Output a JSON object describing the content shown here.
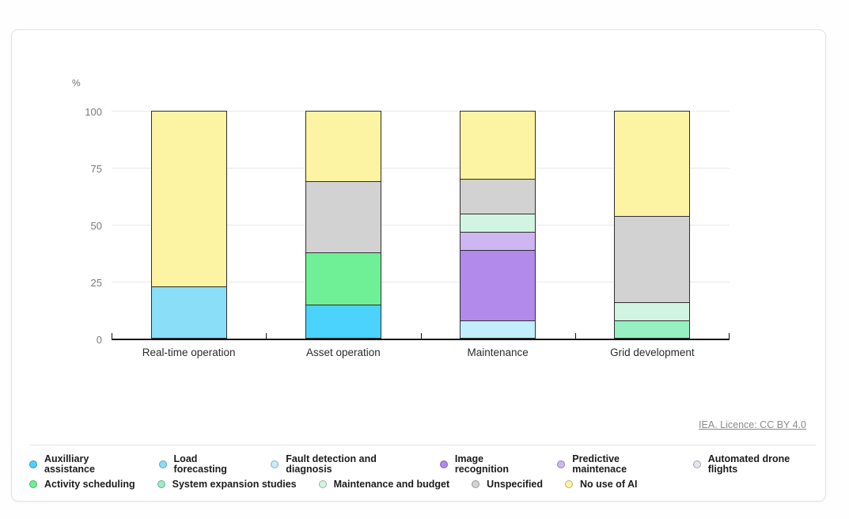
{
  "chart": {
    "unit_label": "%"
  },
  "footer": {
    "license": "IEA. Licence: CC BY 4.0"
  },
  "legend": {
    "rows": [
      [
        {
          "label": "Auxilliary assistance",
          "color": "#4BD2FD"
        },
        {
          "label": "Load forecasting",
          "color": "#8ADEF8"
        },
        {
          "label": "Fault detection and diagnosis",
          "color": "#C2EDFB"
        },
        {
          "label": "Image recognition",
          "color": "#B18AEC"
        },
        {
          "label": "Predictive maintenace",
          "color": "#CDB6F1"
        },
        {
          "label": "Automated drone flights",
          "color": "#E6E4F0"
        }
      ],
      [
        {
          "label": "Activity scheduling",
          "color": "#6FF096"
        },
        {
          "label": "System expansion studies",
          "color": "#98EFC2"
        },
        {
          "label": "Maintenance and budget",
          "color": "#D2F5E1"
        },
        {
          "label": "Unspecified",
          "color": "#D2D2D2"
        },
        {
          "label": "No use of AI",
          "color": "#FDF4A3"
        }
      ]
    ]
  },
  "chart_data": {
    "type": "bar",
    "stacked": true,
    "title": "",
    "xlabel": "",
    "ylabel": "%",
    "ylim": [
      0,
      100
    ],
    "yticks": [
      0,
      25,
      50,
      75,
      100
    ],
    "grid": true,
    "legend_position": "bottom",
    "categories": [
      "Real-time operation",
      "Asset operation",
      "Maintenance",
      "Grid development"
    ],
    "series": [
      {
        "name": "Auxilliary assistance",
        "color": "#4BD2FD",
        "values": [
          0,
          15,
          0,
          0
        ]
      },
      {
        "name": "Load forecasting",
        "color": "#8ADEF8",
        "values": [
          23,
          0,
          0,
          0
        ]
      },
      {
        "name": "Fault detection and diagnosis",
        "color": "#C2EDFB",
        "values": [
          0,
          0,
          8,
          0
        ]
      },
      {
        "name": "Image recognition",
        "color": "#B18AEC",
        "values": [
          0,
          0,
          31,
          0
        ]
      },
      {
        "name": "Predictive maintenace",
        "color": "#CDB6F1",
        "values": [
          0,
          0,
          8,
          0
        ]
      },
      {
        "name": "Automated drone flights",
        "color": "#E6E4F0",
        "values": [
          0,
          0,
          0,
          0
        ]
      },
      {
        "name": "Activity scheduling",
        "color": "#6FF096",
        "values": [
          0,
          23,
          0,
          0
        ]
      },
      {
        "name": "System expansion studies",
        "color": "#98EFC2",
        "values": [
          0,
          0,
          0,
          8
        ]
      },
      {
        "name": "Maintenance and budget",
        "color": "#D2F5E1",
        "values": [
          0,
          0,
          8,
          8
        ]
      },
      {
        "name": "Unspecified",
        "color": "#D2D2D2",
        "values": [
          0,
          31,
          15,
          38
        ]
      },
      {
        "name": "No use of AI",
        "color": "#FDF4A3",
        "values": [
          77,
          31,
          30,
          46
        ]
      }
    ]
  }
}
